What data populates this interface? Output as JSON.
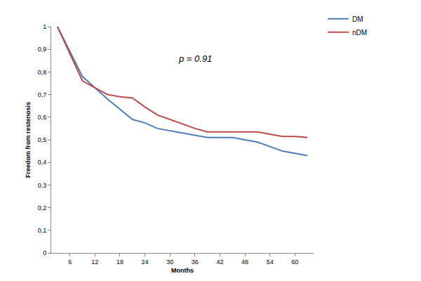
{
  "chart_data": {
    "type": "line",
    "x_label": "Months",
    "y_label": "Freedom from restenosis",
    "x": [
      3,
      6,
      9,
      12,
      15,
      18,
      21,
      24,
      27,
      30,
      33,
      36,
      39,
      42,
      45,
      48,
      51,
      54,
      57,
      60,
      63
    ],
    "series": [
      {
        "name": "DM",
        "color": "#4a7ebb",
        "values": [
          1.0,
          0.89,
          0.78,
          0.73,
          0.68,
          0.635,
          0.59,
          0.575,
          0.55,
          0.54,
          0.53,
          0.52,
          0.51,
          0.51,
          0.51,
          0.5,
          0.49,
          0.47,
          0.45,
          0.44,
          0.43
        ]
      },
      {
        "name": "nDM",
        "color": "#be4b48",
        "values": [
          1.0,
          0.88,
          0.76,
          0.73,
          0.7,
          0.69,
          0.685,
          0.645,
          0.61,
          0.59,
          0.57,
          0.55,
          0.535,
          0.535,
          0.535,
          0.535,
          0.535,
          0.525,
          0.515,
          0.515,
          0.51
        ]
      }
    ],
    "xlim": [
      1.5,
      64.5
    ],
    "xticks": [
      6,
      12,
      18,
      24,
      30,
      36,
      42,
      48,
      54,
      60
    ],
    "ylim": [
      0,
      1
    ],
    "yticks": [
      0,
      {
        "value": 0.1,
        "label": "0,1"
      },
      {
        "value": 0.2,
        "label": "0,2"
      },
      {
        "value": 0.3,
        "label": "0,3"
      },
      {
        "value": 0.4,
        "label": "0,4"
      },
      {
        "value": 0.5,
        "label": "0,5"
      },
      {
        "value": 0.6,
        "label": "0,6"
      },
      {
        "value": 0.7,
        "label": "0,7"
      },
      {
        "value": 0.8,
        "label": "0,8"
      },
      {
        "value": 0.9,
        "label": "0,9"
      },
      1
    ],
    "annotations": [
      {
        "text": "p = 0.91",
        "x": 36,
        "y": 0.86
      }
    ],
    "grid": false,
    "legend": "upper right"
  }
}
